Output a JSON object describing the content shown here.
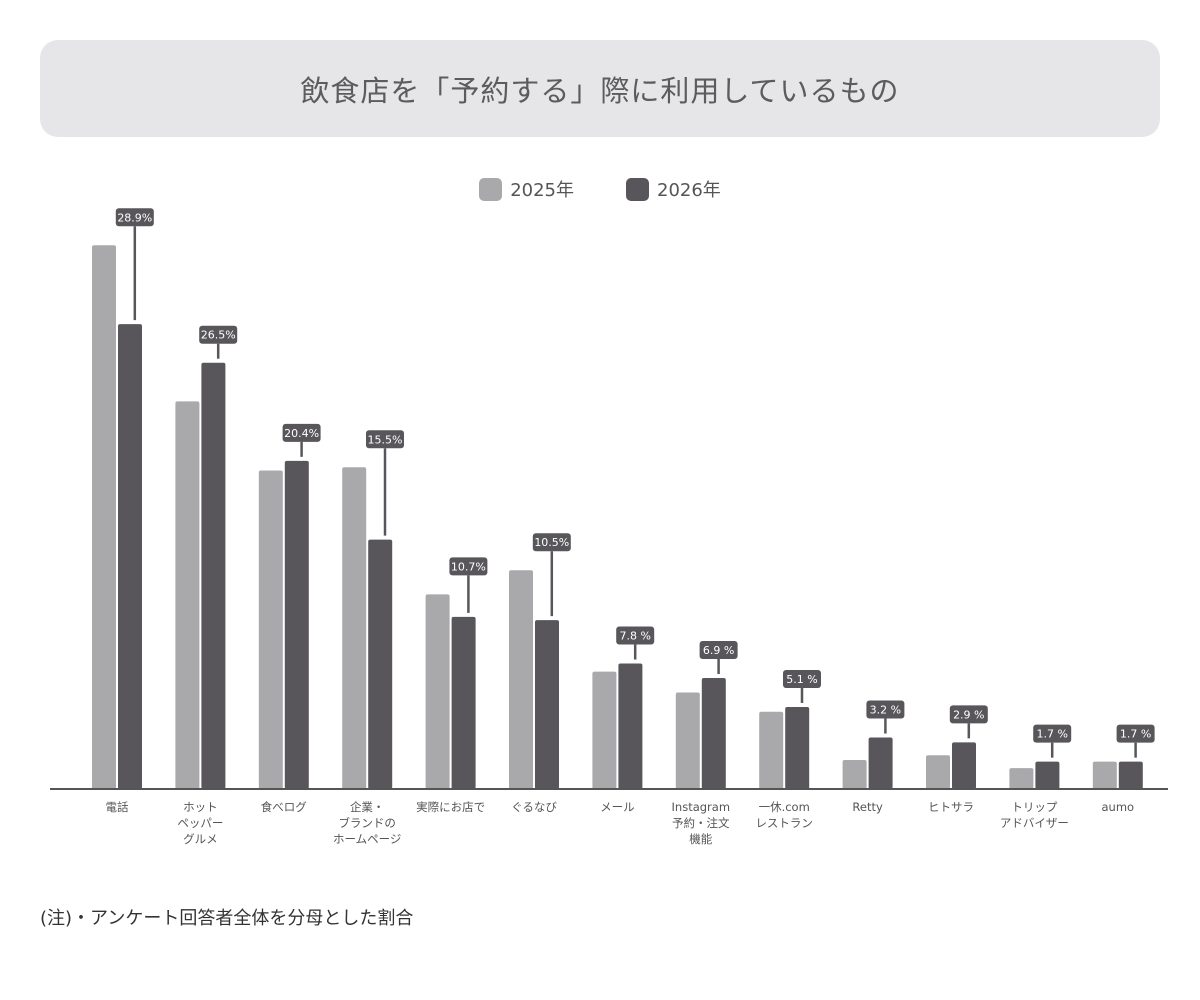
{
  "title": "飲食店を「予約する」際に利用しているもの",
  "note": "(注)・アンケート回答者全体を分母とした割合",
  "colors": {
    "series_2025": "#a9a8ab",
    "series_2026": "#58565a",
    "axis": "#555555",
    "label_bg": "#58565a",
    "title_bg": "#e6e5e7"
  },
  "chart_data": {
    "type": "bar",
    "categories": [
      "電話",
      "ホット\nペッパー\nグルメ",
      "食べログ",
      "企業・\nブランドの\nホームページ",
      "実際にお店で",
      "ぐるなび",
      "メール",
      "Instagram\n予約・注文\n機能",
      "一休.com\nレストラン",
      "Retty",
      "ヒトサラ",
      "トリップ\nアドバイザー",
      "aumo"
    ],
    "series": [
      {
        "name": "2025年",
        "values": [
          33.8,
          24.1,
          19.8,
          20.0,
          12.1,
          13.6,
          7.3,
          6.0,
          4.8,
          1.8,
          2.1,
          1.3,
          1.7
        ]
      },
      {
        "name": "2026年",
        "values": [
          28.9,
          26.5,
          20.4,
          15.5,
          10.7,
          10.5,
          7.8,
          6.9,
          5.1,
          3.2,
          2.9,
          1.7,
          1.7
        ]
      }
    ],
    "data_labels": [
      "28.9%",
      "26.5%",
      "20.4%",
      "15.5%",
      "10.7%",
      "10.5%",
      "7.8 %",
      "6.9 %",
      "5.1 %",
      "3.2 %",
      "2.9 %",
      "1.7 %",
      "1.7 %"
    ],
    "ylim": [
      0,
      35
    ],
    "legend_position": "top-center",
    "grid": false
  }
}
